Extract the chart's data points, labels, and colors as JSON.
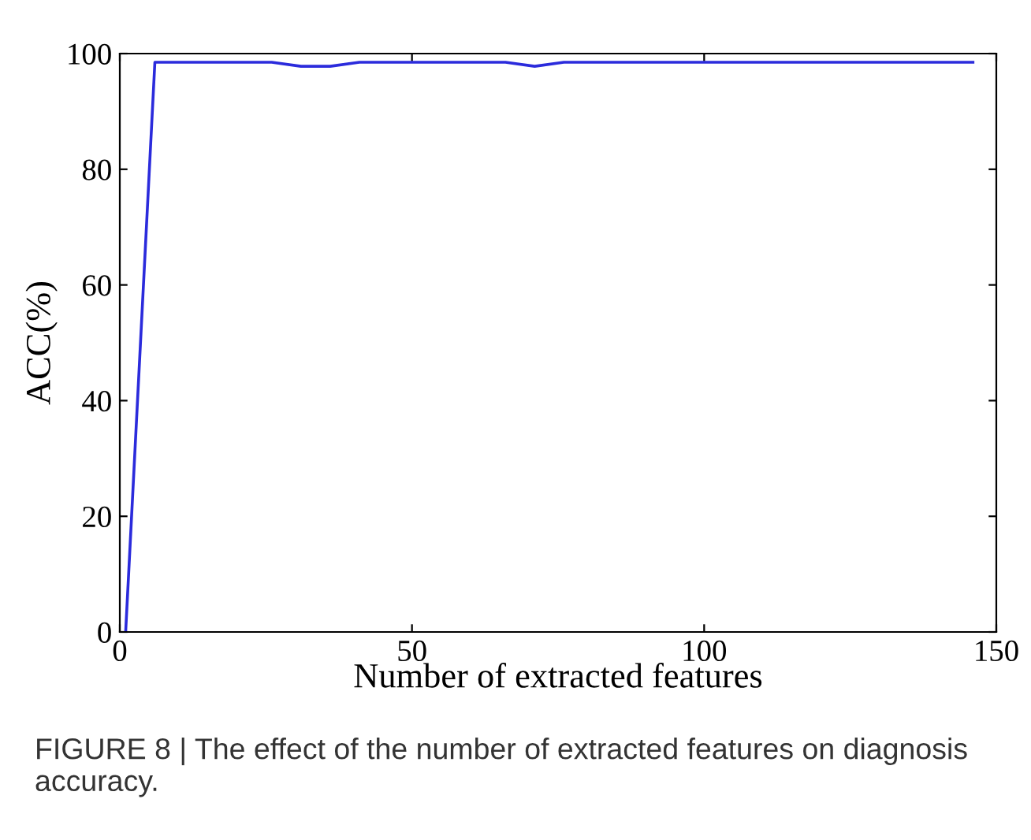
{
  "chart_data": {
    "type": "line",
    "xlabel": "Number of extracted features",
    "ylabel": "ACC(%)",
    "x": [
      1,
      6,
      11,
      16,
      21,
      26,
      31,
      36,
      41,
      46,
      51,
      56,
      61,
      66,
      71,
      76,
      81,
      86,
      91,
      96,
      101,
      106,
      111,
      116,
      121,
      126,
      131,
      136,
      141,
      146
    ],
    "series": [
      {
        "color": "#2b2bdc",
        "values": [
          0,
          98.5,
          98.5,
          98.5,
          98.5,
          98.5,
          97.8,
          97.8,
          98.5,
          98.5,
          98.5,
          98.5,
          98.5,
          98.5,
          97.8,
          98.5,
          98.5,
          98.5,
          98.5,
          98.5,
          98.5,
          98.5,
          98.5,
          98.5,
          98.5,
          98.5,
          98.5,
          98.5,
          98.5,
          98.5
        ]
      }
    ],
    "xlim": [
      0,
      150
    ],
    "ylim": [
      0,
      100
    ],
    "xticks": [
      0,
      50,
      100,
      150
    ],
    "yticks": [
      0,
      20,
      40,
      60,
      80,
      100
    ],
    "grid": false,
    "annotations": [
      "FIGURE 8 | The effect of the number of extracted features on diagnosis accuracy."
    ]
  }
}
